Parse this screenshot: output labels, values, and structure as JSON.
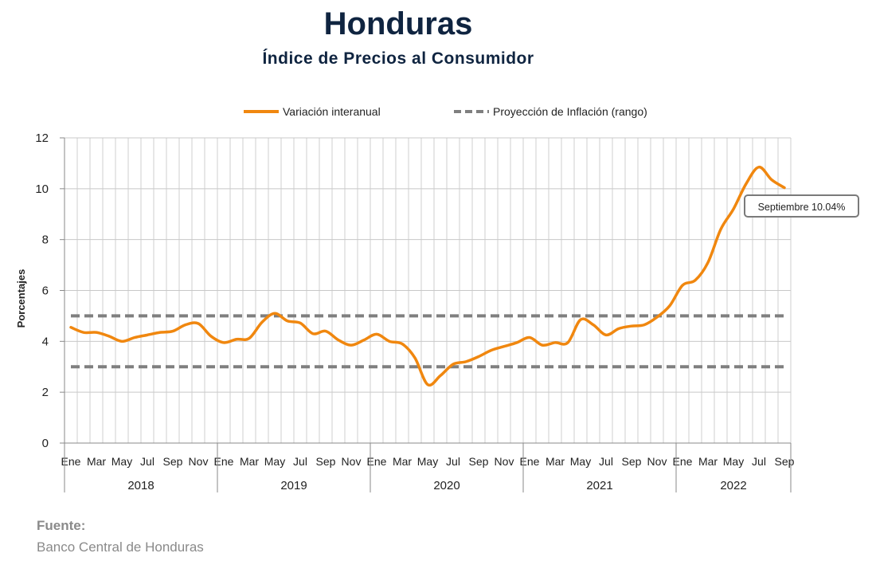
{
  "title": "Honduras",
  "subtitle": "Índice de Precios al Consumidor",
  "source": {
    "label": "Fuente:",
    "text": "Banco Central de Honduras"
  },
  "chart_data": {
    "type": "line",
    "ylabel": "Porcentajes",
    "ylim": [
      0,
      12
    ],
    "yticks": [
      "0",
      "2",
      "4",
      "6",
      "8",
      "10",
      "12"
    ],
    "grid": true,
    "legend_position": "top",
    "month_labels": [
      "Ene",
      "Mar",
      "May",
      "Jul",
      "Sep",
      "Nov"
    ],
    "last_year_month_labels": [
      "Ene",
      "Mar",
      "May",
      "Jul",
      "Sep"
    ],
    "years": [
      "2018",
      "2019",
      "2020",
      "2021",
      "2022"
    ],
    "series": [
      {
        "name": "Variación interanual",
        "color": "#f0870f",
        "values": [
          4.55,
          4.35,
          4.35,
          4.2,
          4.0,
          4.15,
          4.25,
          4.35,
          4.4,
          4.65,
          4.7,
          4.2,
          3.95,
          4.08,
          4.12,
          4.75,
          5.1,
          4.8,
          4.72,
          4.3,
          4.4,
          4.05,
          3.85,
          4.05,
          4.28,
          4.0,
          3.9,
          3.35,
          2.3,
          2.65,
          3.1,
          3.2,
          3.4,
          3.65,
          3.8,
          3.95,
          4.15,
          3.85,
          3.95,
          3.95,
          4.85,
          4.65,
          4.25,
          4.5,
          4.6,
          4.65,
          4.95,
          5.4,
          6.2,
          6.4,
          7.1,
          8.4,
          9.2,
          10.2,
          10.85,
          10.35,
          10.04
        ]
      },
      {
        "name": "Proyección de Inflación (rango)",
        "color": "#7f7f7f",
        "style": "dashed",
        "range": [
          3,
          5
        ]
      }
    ],
    "annotation": {
      "text": "Septiembre 10.04%"
    }
  }
}
